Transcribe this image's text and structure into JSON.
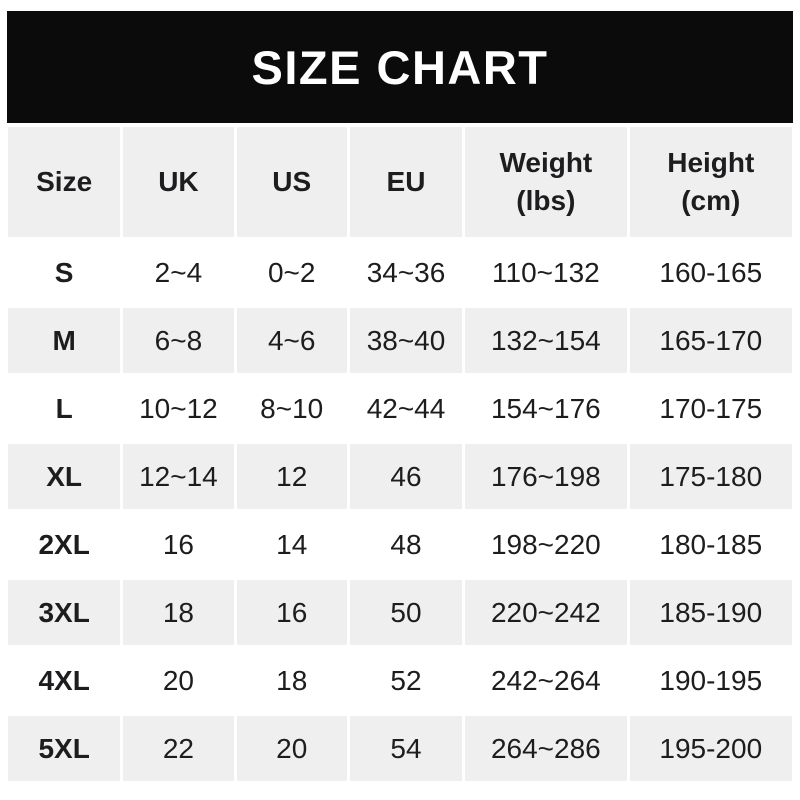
{
  "banner": {
    "title": "SIZE CHART"
  },
  "colors": {
    "banner_bg": "#0b0b0b",
    "banner_text": "#ffffff",
    "row_alt_bg": "#efefef",
    "row_bg": "#ffffff",
    "text": "#1d1d1f"
  },
  "chart_data": {
    "type": "table",
    "title": "SIZE CHART",
    "columns": [
      "Size",
      "UK",
      "US",
      "EU",
      "Weight (lbs)",
      "Height (cm)"
    ],
    "rows": [
      [
        "S",
        "2~4",
        "0~2",
        "34~36",
        "110~132",
        "160-165"
      ],
      [
        "M",
        "6~8",
        "4~6",
        "38~40",
        "132~154",
        "165-170"
      ],
      [
        "L",
        "10~12",
        "8~10",
        "42~44",
        "154~176",
        "170-175"
      ],
      [
        "XL",
        "12~14",
        "12",
        "46",
        "176~198",
        "175-180"
      ],
      [
        "2XL",
        "16",
        "14",
        "48",
        "198~220",
        "180-185"
      ],
      [
        "3XL",
        "18",
        "16",
        "50",
        "220~242",
        "185-190"
      ],
      [
        "4XL",
        "20",
        "18",
        "52",
        "242~264",
        "190-195"
      ],
      [
        "5XL",
        "22",
        "20",
        "54",
        "264~286",
        "195-200"
      ]
    ]
  }
}
